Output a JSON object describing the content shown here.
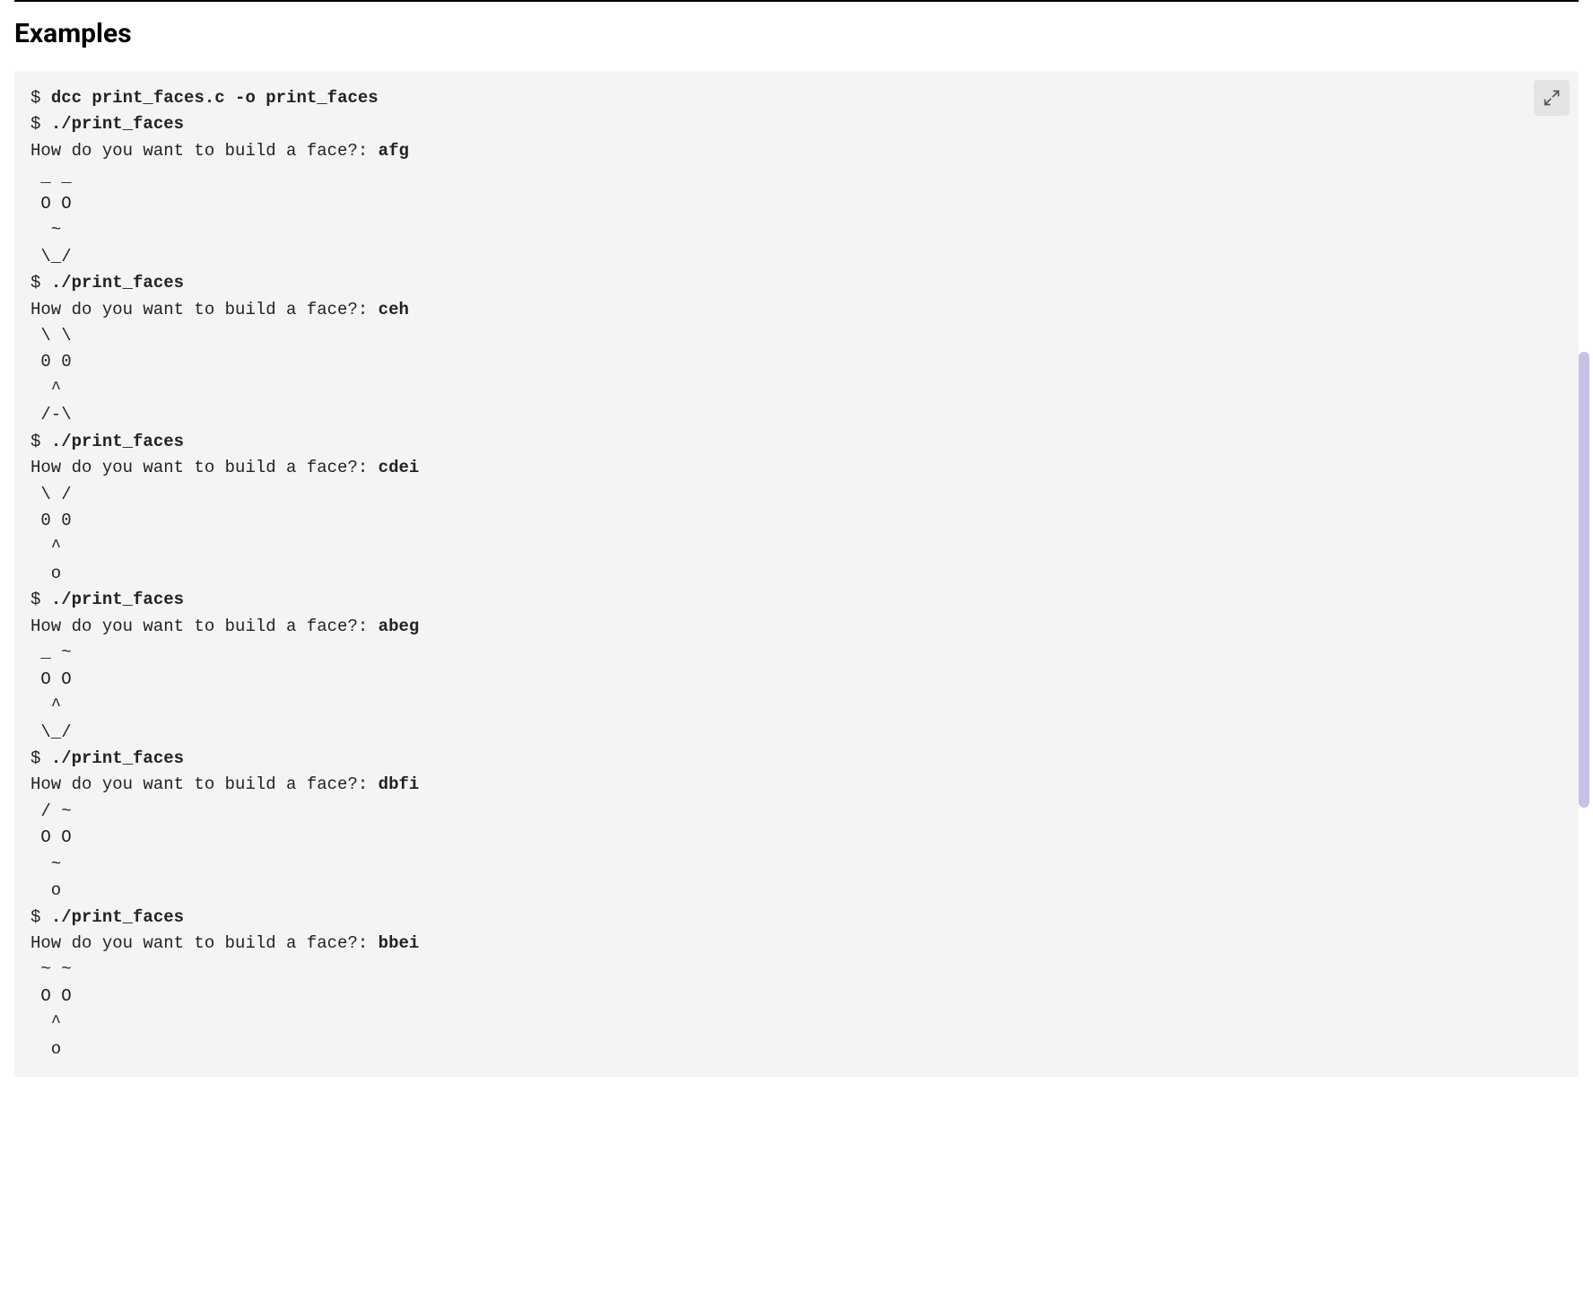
{
  "section": {
    "title": "Examples"
  },
  "colors": {
    "page_background": "#ffffff",
    "code_background": "#f4f4f4",
    "expand_button_background": "#e4e4e4",
    "text_color": "#222222",
    "divider_color": "#000000",
    "scrollbar_thumb": "#c5c2e8",
    "expand_icon_stroke": "#555555"
  },
  "typography": {
    "title_fontsize": 30,
    "title_fontweight": 700,
    "code_fontsize": 19,
    "code_line_height": 1.55,
    "code_font_family": "SFMono-Regular, Consolas, Liberation Mono, Menlo, monospace"
  },
  "scrollbar": {
    "top_percent": 27,
    "height_percent": 35
  },
  "terminal": {
    "compile_prompt": "$ ",
    "compile_cmd": "dcc print_faces.c -o print_faces",
    "run_prompt": "$ ",
    "run_cmd": "./print_faces",
    "question_prefix": "How do you want to build a face?: ",
    "runs": [
      {
        "input": "afg",
        "output": " _ _\n O O\n  ~\n \\_/"
      },
      {
        "input": "ceh",
        "output": " \\ \\\n 0 0\n  ^\n /-\\"
      },
      {
        "input": "cdei",
        "output": " \\ /\n 0 0\n  ^\n  o"
      },
      {
        "input": "abeg",
        "output": " _ ~\n O O\n  ^\n \\_/"
      },
      {
        "input": "dbfi",
        "output": " / ~\n O O\n  ~\n  o"
      },
      {
        "input": "bbei",
        "output": " ~ ~\n O O\n  ^\n  o"
      }
    ]
  }
}
